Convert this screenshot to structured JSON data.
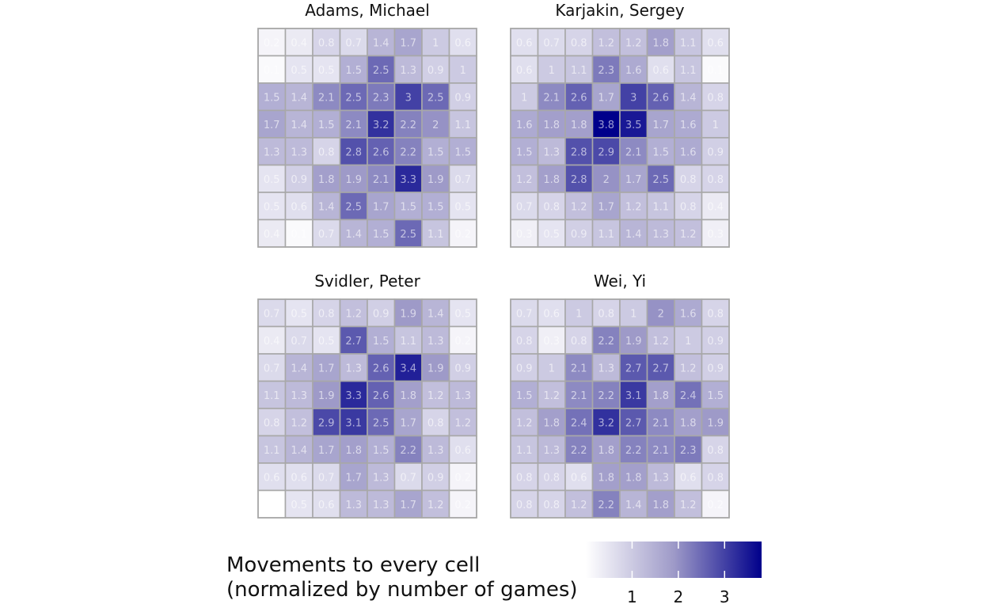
{
  "chart_data": {
    "type": "heatmap",
    "color_scale": {
      "low": "#ffffff",
      "mid": "#9e9ac8",
      "high": "#00008b",
      "domain": [
        0,
        3.8
      ],
      "ticks": [
        "1",
        "2",
        "3"
      ]
    },
    "legend": {
      "title_line1": "Movements to every cell",
      "title_line2": "(normalized by number of games)",
      "placement": "bottom"
    },
    "panels": [
      {
        "title": "Adams, Michael",
        "values": [
          [
            0.2,
            0.4,
            0.8,
            0.7,
            1.4,
            1.7,
            1,
            0.6
          ],
          [
            0.1,
            0.5,
            0.5,
            1.5,
            2.5,
            1.3,
            0.9,
            1
          ],
          [
            1.5,
            1.4,
            2.1,
            2.5,
            2.3,
            3,
            2.5,
            0.9
          ],
          [
            1.7,
            1.4,
            1.5,
            2.1,
            3.2,
            2.2,
            2,
            1.1
          ],
          [
            1.3,
            1.3,
            0.8,
            2.8,
            2.6,
            2.2,
            1.5,
            1.5
          ],
          [
            0.5,
            0.9,
            1.8,
            1.9,
            2.1,
            3.3,
            1.9,
            0.7
          ],
          [
            0.5,
            0.6,
            1.4,
            2.5,
            1.7,
            1.5,
            1.5,
            0.5
          ],
          [
            0.4,
            0.1,
            0.7,
            1.4,
            1.5,
            2.5,
            1.1,
            0.2
          ]
        ],
        "labels": [
          [
            "0.2",
            "0.4",
            "0.8",
            "0.7",
            "1.4",
            "1.7",
            "1",
            "0.6"
          ],
          [
            "0.1",
            "0.5",
            "0.5",
            "1.5",
            "2.5",
            "1.3",
            "0.9",
            "1"
          ],
          [
            "1.5",
            "1.4",
            "2.1",
            "2.5",
            "2.3",
            "3",
            "2.5",
            "0.9"
          ],
          [
            "1.7",
            "1.4",
            "1.5",
            "2.1",
            "3.2",
            "2.2",
            "2",
            "1.1"
          ],
          [
            "1.3",
            "1.3",
            "0.8",
            "2.8",
            "2.6",
            "2.2",
            "1.5",
            "1.5"
          ],
          [
            "0.5",
            "0.9",
            "1.8",
            "1.9",
            "2.1",
            "3.3",
            "1.9",
            "0.7"
          ],
          [
            "0.5",
            "0.6",
            "1.4",
            "2.5",
            "1.7",
            "1.5",
            "1.5",
            "0.5"
          ],
          [
            "0.4",
            "0.1",
            "0.7",
            "1.4",
            "1.5",
            "2.5",
            "1.1",
            "0.2"
          ]
        ]
      },
      {
        "title": "Karjakin, Sergey",
        "values": [
          [
            0.6,
            0.7,
            0.8,
            1.2,
            1.2,
            1.8,
            1.1,
            0.6
          ],
          [
            0.6,
            1,
            1.1,
            2.3,
            1.6,
            0.6,
            1.1,
            0.1
          ],
          [
            1,
            2.1,
            2.6,
            1.7,
            3,
            2.6,
            1.4,
            0.8
          ],
          [
            1.6,
            1.8,
            1.8,
            3.8,
            3.5,
            1.7,
            1.6,
            1
          ],
          [
            1.5,
            1.3,
            2.8,
            2.9,
            2.1,
            1.5,
            1.6,
            0.9
          ],
          [
            1.2,
            1.8,
            2.8,
            2,
            1.7,
            2.5,
            0.8,
            0.8
          ],
          [
            0.7,
            0.8,
            1.2,
            1.7,
            1.2,
            1.1,
            0.8,
            0.4
          ],
          [
            0.3,
            0.5,
            0.9,
            1.1,
            1.4,
            1.3,
            1.2,
            0.3
          ]
        ],
        "labels": [
          [
            "0.6",
            "0.7",
            "0.8",
            "1.2",
            "1.2",
            "1.8",
            "1.1",
            "0.6"
          ],
          [
            "0.6",
            "1",
            "1.1",
            "2.3",
            "1.6",
            "0.6",
            "1.1",
            "0.1"
          ],
          [
            "1",
            "2.1",
            "2.6",
            "1.7",
            "3",
            "2.6",
            "1.4",
            "0.8"
          ],
          [
            "1.6",
            "1.8",
            "1.8",
            "3.8",
            "3.5",
            "1.7",
            "1.6",
            "1"
          ],
          [
            "1.5",
            "1.3",
            "2.8",
            "2.9",
            "2.1",
            "1.5",
            "1.6",
            "0.9"
          ],
          [
            "1.2",
            "1.8",
            "2.8",
            "2",
            "1.7",
            "2.5",
            "0.8",
            "0.8"
          ],
          [
            "0.7",
            "0.8",
            "1.2",
            "1.7",
            "1.2",
            "1.1",
            "0.8",
            "0.4"
          ],
          [
            "0.3",
            "0.5",
            "0.9",
            "1.1",
            "1.4",
            "1.3",
            "1.2",
            "0.3"
          ]
        ]
      },
      {
        "title": "Svidler, Peter",
        "values": [
          [
            0.7,
            0.5,
            0.8,
            1.2,
            0.9,
            1.9,
            1.4,
            0.5
          ],
          [
            0.4,
            0.7,
            0.5,
            2.7,
            1.5,
            1.1,
            1.3,
            0.2
          ],
          [
            0.7,
            1.4,
            1.7,
            1.3,
            2.6,
            3.4,
            1.9,
            0.9
          ],
          [
            1.1,
            1.3,
            1.9,
            3.3,
            2.6,
            1.8,
            1.2,
            1.3
          ],
          [
            0.8,
            1.2,
            2.9,
            3.1,
            2.5,
            1.7,
            0.8,
            1.2
          ],
          [
            1.1,
            1.4,
            1.7,
            1.8,
            1.5,
            2.2,
            1.3,
            0.6
          ],
          [
            0.6,
            0.6,
            0.7,
            1.7,
            1.3,
            0.7,
            0.9,
            0.2
          ],
          [
            0.0,
            0.5,
            0.6,
            1.3,
            1.3,
            1.7,
            1.2,
            0.2
          ]
        ],
        "labels": [
          [
            "0.7",
            "0.5",
            "0.8",
            "1.2",
            "0.9",
            "1.9",
            "1.4",
            "0.5"
          ],
          [
            "0.4",
            "0.7",
            "0.5",
            "2.7",
            "1.5",
            "1.1",
            "1.3",
            "0.2"
          ],
          [
            "0.7",
            "1.4",
            "1.7",
            "1.3",
            "2.6",
            "3.4",
            "1.9",
            "0.9"
          ],
          [
            "1.1",
            "1.3",
            "1.9",
            "3.3",
            "2.6",
            "1.8",
            "1.2",
            "1.3"
          ],
          [
            "0.8",
            "1.2",
            "2.9",
            "3.1",
            "2.5",
            "1.7",
            "0.8",
            "1.2"
          ],
          [
            "1.1",
            "1.4",
            "1.7",
            "1.8",
            "1.5",
            "2.2",
            "1.3",
            "0.6"
          ],
          [
            "0.6",
            "0.6",
            "0.7",
            "1.7",
            "1.3",
            "0.7",
            "0.9",
            "0.2"
          ],
          [
            "",
            "0.5",
            "0.6",
            "1.3",
            "1.3",
            "1.7",
            "1.2",
            "0.2"
          ]
        ]
      },
      {
        "title": "Wei, Yi",
        "values": [
          [
            0.7,
            0.6,
            1,
            0.8,
            1,
            2,
            1.6,
            0.8
          ],
          [
            0.8,
            0.3,
            0.8,
            2.2,
            1.9,
            1.2,
            1,
            0.9
          ],
          [
            0.9,
            1,
            2.1,
            1.3,
            2.7,
            2.7,
            1.2,
            0.9
          ],
          [
            1.5,
            1.2,
            2.1,
            2.2,
            3.1,
            1.8,
            2.4,
            1.5
          ],
          [
            1.2,
            1.8,
            2.4,
            3.2,
            2.7,
            2.1,
            1.8,
            1.9
          ],
          [
            1.1,
            1.3,
            2.2,
            1.8,
            2.2,
            2.1,
            2.3,
            0.8
          ],
          [
            0.8,
            0.8,
            0.6,
            1.8,
            1.8,
            1.3,
            0.6,
            0.8
          ],
          [
            0.8,
            0.8,
            1.2,
            2.2,
            1.4,
            1.8,
            1.2,
            0.2
          ]
        ],
        "labels": [
          [
            "0.7",
            "0.6",
            "1",
            "0.8",
            "1",
            "2",
            "1.6",
            "0.8"
          ],
          [
            "0.8",
            "0.3",
            "0.8",
            "2.2",
            "1.9",
            "1.2",
            "1",
            "0.9"
          ],
          [
            "0.9",
            "1",
            "2.1",
            "1.3",
            "2.7",
            "2.7",
            "1.2",
            "0.9"
          ],
          [
            "1.5",
            "1.2",
            "2.1",
            "2.2",
            "3.1",
            "1.8",
            "2.4",
            "1.5"
          ],
          [
            "1.2",
            "1.8",
            "2.4",
            "3.2",
            "2.7",
            "2.1",
            "1.8",
            "1.9"
          ],
          [
            "1.1",
            "1.3",
            "2.2",
            "1.8",
            "2.2",
            "2.1",
            "2.3",
            "0.8"
          ],
          [
            "0.8",
            "0.8",
            "0.6",
            "1.8",
            "1.8",
            "1.3",
            "0.6",
            "0.8"
          ],
          [
            "0.8",
            "0.8",
            "1.2",
            "2.2",
            "1.4",
            "1.8",
            "1.2",
            "0.2"
          ]
        ]
      }
    ]
  }
}
